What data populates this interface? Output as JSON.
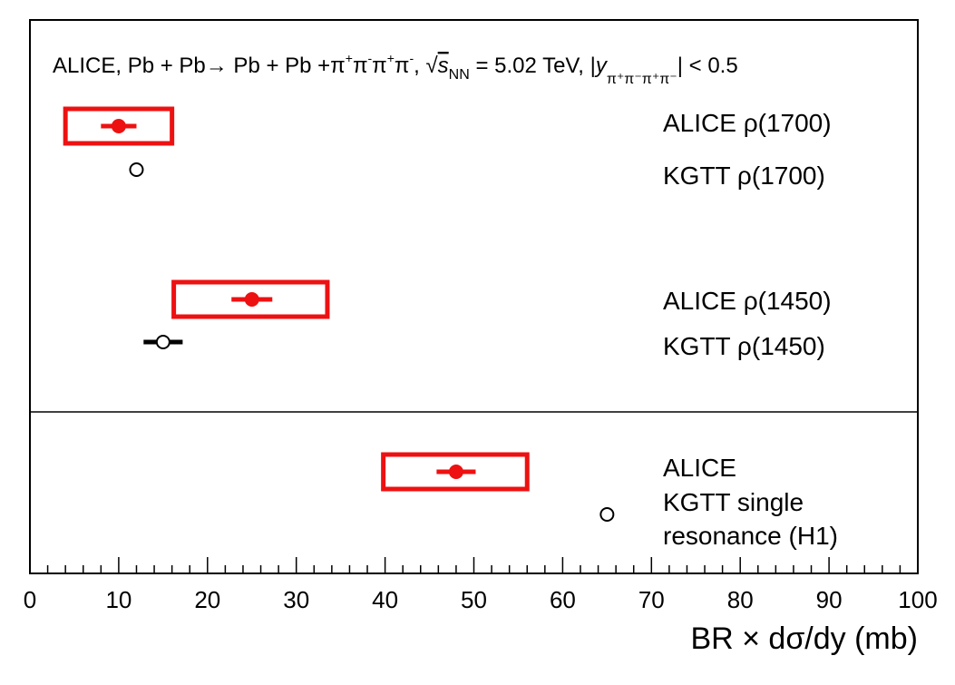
{
  "chart_data": {
    "type": "scatter",
    "title": {
      "prefix": "ALICE,  Pb + Pb",
      "arrow": "→",
      "reaction": " Pb + Pb +π",
      "decay_tail": ", ",
      "sqrt_s_symbol": "s",
      "sqrt_s_sub": "NN",
      "energy": " = 5.02 TeV, |",
      "y_symbol": "y",
      "y_sub": "π⁺π⁻π⁺π⁻",
      "cut": "| < 0.5"
    },
    "xlabel": "BR × dσ/dy  (mb)",
    "xlim": [
      0,
      100
    ],
    "x_ticks": [
      "0",
      "10",
      "20",
      "30",
      "40",
      "50",
      "60",
      "70",
      "80",
      "90",
      "100"
    ],
    "colors": {
      "alice": "#ee1111",
      "model": "#000000"
    },
    "series": [
      {
        "name": "ALICE ρ(1700)",
        "label_lines": [
          "ALICE ρ(1700)"
        ],
        "value": 10.0,
        "stat_err": 2.0,
        "syst_low": 4.0,
        "syst_high": 16.0,
        "marker": "filled-red",
        "panel": 0
      },
      {
        "name": "KGTT ρ(1700)",
        "label_lines": [
          "KGTT ρ(1700)"
        ],
        "value": 12.0,
        "marker": "open-black",
        "panel": 0
      },
      {
        "name": "ALICE ρ(1450)",
        "label_lines": [
          "ALICE ρ(1450)"
        ],
        "value": 25.0,
        "stat_err": 2.3,
        "syst_low": 16.2,
        "syst_high": 33.5,
        "marker": "filled-red",
        "panel": 0
      },
      {
        "name": "KGTT ρ(1450)",
        "label_lines": [
          "KGTT ρ(1450)"
        ],
        "value": 15.0,
        "stat_err": 2.2,
        "marker": "open-black",
        "panel": 0
      },
      {
        "name": "ALICE",
        "label_lines": [
          "ALICE"
        ],
        "value": 48.0,
        "stat_err": 2.2,
        "syst_low": 39.8,
        "syst_high": 56.0,
        "marker": "filled-red",
        "panel": 1
      },
      {
        "name": "KGTT single resonance (H1)",
        "label_lines": [
          "KGTT single",
          "resonance (H1)"
        ],
        "value": 65.0,
        "marker": "open-black",
        "panel": 1
      }
    ]
  }
}
